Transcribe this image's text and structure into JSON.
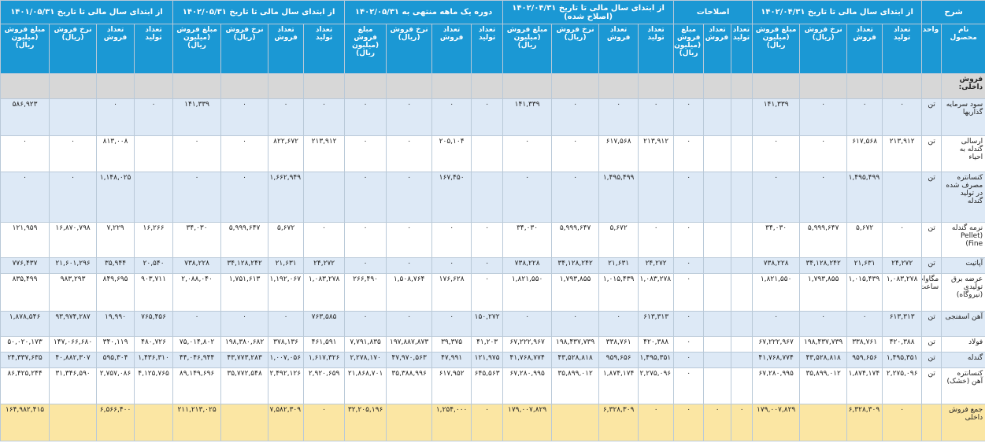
{
  "header": {
    "description": "شرح",
    "product": "نام محصول",
    "unit": "واحد"
  },
  "groups": [
    {
      "title": "از ابتدای سال مالی تا تاریخ ۱۴۰۲/۰۴/۳۱",
      "columns": [
        "تعداد تولید",
        "تعداد فروش",
        "نرخ فروش (ریال)",
        "مبلغ فروش (میلیون ریال)"
      ]
    },
    {
      "title": "اصلاحات",
      "columns": [
        "تعداد تولید",
        "تعداد فروش",
        "مبلغ فروش (میلیون ریال)"
      ]
    },
    {
      "title": "از ابتدای سال مالی تا تاریخ ۱۴۰۲/۰۴/۳۱ (اصلاح شده)",
      "columns": [
        "تعداد تولید",
        "تعداد فروش",
        "نرخ فروش (ریال)",
        "مبلغ فروش (میلیون ریال)"
      ]
    },
    {
      "title": "دوره یک ماهه منتهی به ۱۴۰۲/۰۵/۳۱",
      "columns": [
        "تعداد تولید",
        "تعداد فروش",
        "نرخ فروش (ریال)",
        "مبلغ فروش (میلیون ریال)"
      ]
    },
    {
      "title": "از ابتدای سال مالی تا تاریخ ۱۴۰۲/۰۵/۳۱",
      "columns": [
        "تعداد تولید",
        "تعداد فروش",
        "نرخ فروش (ریال)",
        "مبلغ فروش (میلیون ریال)"
      ]
    },
    {
      "title": "از ابتدای سال مالی تا تاریخ ۱۴۰۱/۰۵/۳۱",
      "columns": [
        "تعداد تولید",
        "تعداد فروش",
        "نرخ فروش (ریال)",
        "مبلغ فروش (میلیون ریال)"
      ]
    }
  ],
  "section": "فروش داخلی:",
  "rows": [
    {
      "product": "سود سرمایه گذاریها",
      "unit": "تن",
      "cells": [
        "۰",
        "۰",
        "۰",
        "۱۴۱,۳۳۹",
        null,
        null,
        "۰",
        "۰",
        "۰",
        "۰",
        "۱۴۱,۳۳۹",
        "۰",
        "۰",
        "۰",
        "۰",
        "۰",
        "۰",
        "۰",
        "۱۴۱,۳۳۹",
        "۰",
        "۰",
        null,
        "۵۸۶,۹۲۳"
      ]
    },
    {
      "product": "ارسالی گندله به احیاء",
      "unit": "تن",
      "cells": [
        "۲۱۳,۹۱۲",
        "۶۱۷,۵۶۸",
        "۰",
        "۰",
        null,
        null,
        "۰",
        "۲۱۳,۹۱۲",
        "۶۱۷,۵۶۸",
        "۰",
        "۰",
        null,
        "۲۰۵,۱۰۴",
        "۰",
        "۰",
        "۲۱۳,۹۱۲",
        "۸۲۲,۶۷۲",
        "۰",
        "۰",
        null,
        "۸۱۳,۰۰۸",
        "۰",
        "۰"
      ]
    },
    {
      "product": "کنسانتره مصرف شده در تولید گندله",
      "unit": "تن",
      "cells": [
        null,
        "۱,۴۹۵,۴۹۹",
        "۰",
        "۰",
        null,
        null,
        "۰",
        null,
        "۱,۴۹۵,۴۹۹",
        "۰",
        "۰",
        null,
        "۱۶۷,۴۵۰",
        "۰",
        "۰",
        null,
        "۱,۶۶۲,۹۴۹",
        "۰",
        "۰",
        null,
        "۱,۱۴۸,۰۲۵",
        "۰",
        "۰"
      ]
    },
    {
      "product": "نرمه گندله (Pellet Fine)",
      "unit": "تن",
      "cells": [
        "۰",
        "۵,۶۷۲",
        "۵,۹۹۹,۶۴۷",
        "۳۴,۰۳۰",
        null,
        null,
        "۰",
        "۰",
        "۵,۶۷۲",
        "۵,۹۹۹,۶۴۷",
        "۳۴,۰۳۰",
        "۰",
        "۰",
        "۰",
        "۰",
        "۰",
        "۵,۶۷۲",
        "۵,۹۹۹,۶۴۷",
        "۳۴,۰۳۰",
        "۱۶,۲۶۶",
        "۷,۲۲۹",
        "۱۶,۸۷۰,۷۹۸",
        "۱۲۱,۹۵۹"
      ]
    },
    {
      "product": "آپاتیت",
      "unit": "تن",
      "cells": [
        "۲۴,۲۷۲",
        "۲۱,۶۳۱",
        "۳۴,۱۲۸,۲۴۲",
        "۷۳۸,۲۲۸",
        null,
        null,
        "۰",
        "۲۴,۲۷۲",
        "۲۱,۶۳۱",
        "۳۴,۱۲۸,۲۴۲",
        "۷۳۸,۲۲۸",
        "۰",
        "۰",
        "۰",
        "۰",
        "۲۴,۲۷۲",
        "۲۱,۶۳۱",
        "۳۴,۱۲۸,۲۴۲",
        "۷۳۸,۲۲۸",
        "۲۰,۵۴۰",
        "۳۵,۹۴۴",
        "۲۱,۶۰۱,۲۹۶",
        "۷۷۶,۴۳۷"
      ]
    },
    {
      "product": "عرضه برق تولیدی (نیروگاه)",
      "unit": "مگاوات ساعت",
      "cells": [
        "۱,۰۸۳,۲۷۸",
        "۱,۰۱۵,۴۳۹",
        "۱,۷۹۳,۸۵۵",
        "۱,۸۲۱,۵۵۰",
        null,
        null,
        "۰",
        "۱,۰۸۳,۲۷۸",
        "۱,۰۱۵,۴۳۹",
        "۱,۷۹۳,۸۵۵",
        "۱,۸۲۱,۵۵۰",
        "۰",
        "۱۷۶,۶۲۸",
        "۱,۵۰۸,۷۶۴",
        "۲۶۶,۴۹۰",
        "۱,۰۸۳,۲۷۸",
        "۱,۱۹۲,۰۶۷",
        "۱,۷۵۱,۶۱۳",
        "۲,۰۸۸,۰۴۰",
        "۹۰۳,۷۱۱",
        "۸۴۹,۶۹۵",
        "۹۸۳,۲۹۳",
        "۸۳۵,۴۹۹"
      ]
    },
    {
      "product": "آهن اسفنجی",
      "unit": "تن",
      "cells": [
        "۶۱۳,۳۱۳",
        "۰",
        "۰",
        "۰",
        null,
        null,
        "۰",
        "۶۱۳,۳۱۳",
        "۰",
        "۰",
        "۰",
        "۱۵۰,۲۷۲",
        "۰",
        "۰",
        "۰",
        "۷۶۳,۵۸۵",
        "۰",
        "۰",
        "۰",
        "۷۶۵,۴۵۶",
        "۱۹,۹۹۰",
        "۹۳,۹۷۴,۲۸۷",
        "۱,۸۷۸,۵۴۶"
      ]
    },
    {
      "product": "فولاد",
      "unit": "تن",
      "cells": [
        "۴۲۰,۳۸۸",
        "۳۳۸,۷۶۱",
        "۱۹۸,۴۳۷,۷۳۹",
        "۶۷,۲۲۲,۹۶۷",
        null,
        null,
        "۰",
        "۴۲۰,۳۸۸",
        "۳۳۸,۷۶۱",
        "۱۹۸,۴۳۷,۷۳۹",
        "۶۷,۲۲۲,۹۶۷",
        "۴۱,۲۰۳",
        "۳۹,۳۷۵",
        "۱۹۷,۸۸۷,۸۷۳",
        "۷,۷۹۱,۸۳۵",
        "۴۶۱,۵۹۱",
        "۳۷۸,۱۳۶",
        "۱۹۸,۳۸۰,۶۸۲",
        "۷۵,۰۱۴,۸۰۲",
        "۴۸۰,۷۲۶",
        "۳۴۰,۱۱۹",
        "۱۴۷,۰۶۶,۶۸۰",
        "۵۰,۰۲۰,۱۷۳"
      ]
    },
    {
      "product": "گندله",
      "unit": "تن",
      "cells": [
        "۱,۴۹۵,۳۵۱",
        "۹۵۹,۶۵۶",
        "۴۳,۵۲۸,۸۱۸",
        "۴۱,۷۶۸,۷۷۴",
        null,
        null,
        "۰",
        "۱,۴۹۵,۳۵۱",
        "۹۵۹,۶۵۶",
        "۴۳,۵۲۸,۸۱۸",
        "۴۱,۷۶۸,۷۷۴",
        "۱۲۱,۹۷۵",
        "۴۷,۹۹۱",
        "۴۷,۹۷۰,۵۶۳",
        "۲,۲۷۸,۱۷۰",
        "۱,۶۱۷,۳۲۶",
        "۱,۰۰۷,۰۵۶",
        "۴۳,۷۷۳,۲۸۳",
        "۴۴,۰۴۶,۹۴۴",
        "۱,۴۳۶,۳۱۰",
        "۵۹۵,۳۰۴",
        "۴۰,۸۸۲,۳۰۷",
        "۲۴,۳۳۷,۶۳۵"
      ]
    },
    {
      "product": "کنسانتره آهن (خشک)",
      "unit": "تن",
      "cells": [
        "۲,۲۷۵,۰۹۶",
        "۱,۸۷۴,۱۷۴",
        "۳۵,۸۹۹,۰۱۲",
        "۶۷,۲۸۰,۹۹۵",
        null,
        null,
        "۰",
        "۲,۲۷۵,۰۹۶",
        "۱,۸۷۴,۱۷۴",
        "۳۵,۸۹۹,۰۱۲",
        "۶۷,۲۸۰,۹۹۵",
        "۶۴۵,۵۶۳",
        "۶۱۷,۹۵۲",
        "۳۵,۳۸۸,۹۹۶",
        "۲۱,۸۶۸,۷۰۱",
        "۲,۹۲۰,۶۵۹",
        "۲,۴۹۲,۱۲۶",
        "۳۵,۷۷۲,۵۴۸",
        "۸۹,۱۴۹,۶۹۶",
        "۴,۱۲۵,۷۶۵",
        "۲,۷۵۷,۰۸۶",
        "۳۱,۳۴۶,۵۹۰",
        "۸۶,۴۲۵,۲۴۴"
      ]
    }
  ],
  "total": {
    "product": "جمع فروش داخلی",
    "cells": [
      "۰",
      "۶,۳۲۸,۳۰۹",
      null,
      "۱۷۹,۰۰۷,۸۲۹",
      "۰",
      "۰",
      "۰",
      "۰",
      "۶,۳۲۸,۳۰۹",
      null,
      "۱۷۹,۰۰۷,۸۲۹",
      "۰",
      "۱,۲۵۴,۰۰۰",
      null,
      "۳۲,۲۰۵,۱۹۶",
      "۰",
      "۷,۵۸۲,۳۰۹",
      null,
      "۲۱۱,۲۱۳,۰۲۵",
      null,
      "۶,۵۶۶,۴۰۰",
      null,
      "۱۶۴,۹۸۲,۴۱۵"
    ]
  }
}
